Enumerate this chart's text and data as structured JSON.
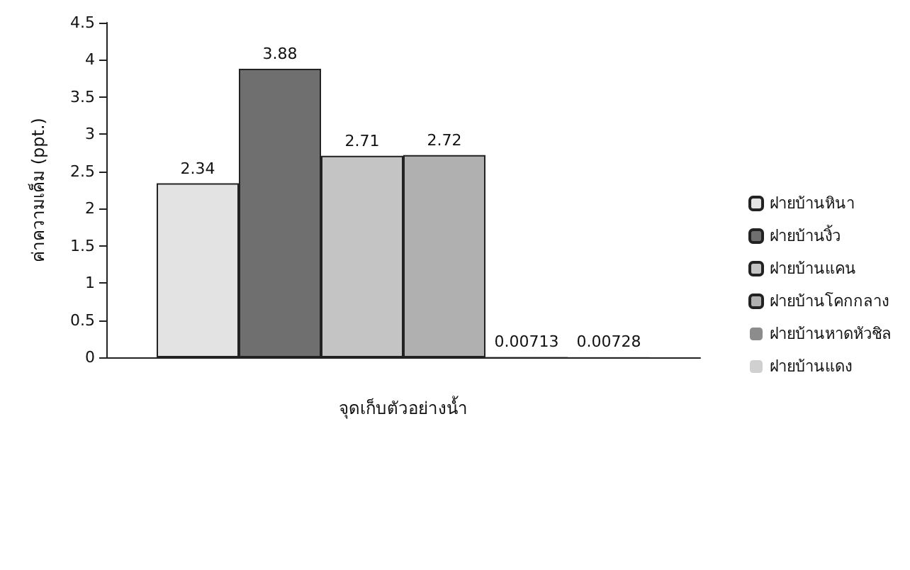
{
  "chart_data": {
    "type": "bar",
    "ylabel": "ค่าความเค็ม (ppt.)",
    "xlabel": "จุดเก็บตัวอย่างน้ำ",
    "categories": [
      null
    ],
    "series": [
      {
        "name": "ฝายบ้านหินา",
        "color": "#e3e3e3",
        "values": [
          2.34
        ]
      },
      {
        "name": "ฝายบ้านงิ้ว",
        "color": "#6f6f6f",
        "values": [
          3.88
        ]
      },
      {
        "name": "ฝายบ้านแคน",
        "color": "#c4c4c4",
        "values": [
          2.71
        ]
      },
      {
        "name": "ฝายบ้านโคกกลาง",
        "color": "#b0b0b0",
        "values": [
          2.72
        ]
      },
      {
        "name": "ฝายบ้านหาดหัวชิล",
        "color": "#8c8c8c",
        "values": [
          0.00713
        ]
      },
      {
        "name": "ฝายบ้านแดง",
        "color": "#d0d0d0",
        "values": [
          0.00728
        ]
      }
    ],
    "ylim": [
      0,
      4.5
    ],
    "yticks": [
      0,
      0.5,
      1,
      1.5,
      2,
      2.5,
      3,
      3.5,
      4,
      4.5
    ],
    "data_labels": true,
    "grid": false,
    "legend": "right"
  }
}
